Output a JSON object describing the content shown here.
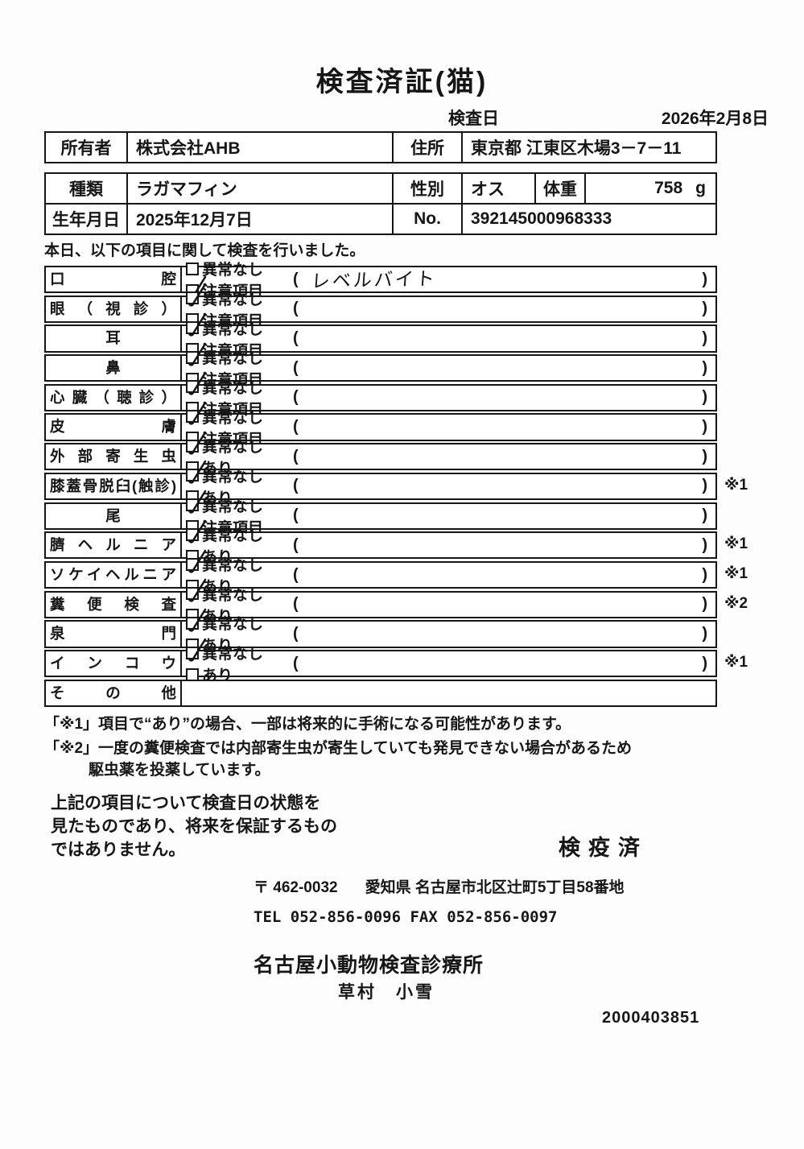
{
  "title": "検査済証(猫)",
  "inspection": {
    "date_label": "検査日",
    "date_value": "2026年2月8日"
  },
  "owner_table": {
    "owner_label": "所有者",
    "owner_value": "株式会社AHB",
    "address_label": "住所",
    "address_value": "東京都 江東区木場3－7－11"
  },
  "info_table": {
    "breed_label": "種類",
    "breed_value": "ラガマフィン",
    "sex_label": "性別",
    "sex_value": "オス",
    "weight_label": "体重",
    "weight_value": "758",
    "weight_unit": "g",
    "birth_label": "生年月日",
    "birth_value": "2025年12月7日",
    "no_label": "No.",
    "no_value": "392145000968333"
  },
  "intro": "本日、以下の項目に関して検査を行いました。",
  "checklist": {
    "paren_open": "(",
    "paren_close": ")",
    "rows": [
      {
        "label": "口腔",
        "options": [
          {
            "text": "異常なし",
            "checked": false
          },
          {
            "text": "注意項目",
            "checked": true
          }
        ],
        "paren": "レベルバイト",
        "marker": ""
      },
      {
        "label": "眼（視診）",
        "options": [
          {
            "text": "異常なし",
            "checked": true
          },
          {
            "text": "注意項目",
            "checked": false
          }
        ],
        "paren": "",
        "marker": ""
      },
      {
        "label": "耳",
        "options": [
          {
            "text": "異常なし",
            "checked": true
          },
          {
            "text": "注意項目",
            "checked": false
          }
        ],
        "paren": "",
        "marker": ""
      },
      {
        "label": "鼻",
        "options": [
          {
            "text": "異常なし",
            "checked": true
          },
          {
            "text": "注意項目",
            "checked": false
          }
        ],
        "paren": "",
        "marker": ""
      },
      {
        "label": "心臓（聴診）",
        "options": [
          {
            "text": "異常なし",
            "checked": true
          },
          {
            "text": "注意項目",
            "checked": false
          }
        ],
        "paren": "",
        "marker": ""
      },
      {
        "label": "皮膚",
        "options": [
          {
            "text": "異常なし",
            "checked": true
          },
          {
            "text": "注意項目",
            "checked": false
          }
        ],
        "paren": "",
        "marker": ""
      },
      {
        "label": "外部寄生虫",
        "options": [
          {
            "text": "異常なし",
            "checked": true
          },
          {
            "text": "あり",
            "checked": false
          }
        ],
        "paren": "",
        "marker": ""
      },
      {
        "label": "膝蓋骨脱臼(触診)",
        "options": [
          {
            "text": "異常なし",
            "checked": true
          },
          {
            "text": "あり",
            "checked": false
          }
        ],
        "paren": "",
        "marker": "※1"
      },
      {
        "label": "尾",
        "options": [
          {
            "text": "異常なし",
            "checked": true
          },
          {
            "text": "注意項目",
            "checked": false
          }
        ],
        "paren": "",
        "marker": ""
      },
      {
        "label": "臍ヘルニア",
        "options": [
          {
            "text": "異常なし",
            "checked": true
          },
          {
            "text": "あり",
            "checked": false
          }
        ],
        "paren": "",
        "marker": "※1"
      },
      {
        "label": "ソケイヘルニア",
        "options": [
          {
            "text": "異常なし",
            "checked": true
          },
          {
            "text": "あり",
            "checked": false
          }
        ],
        "paren": "",
        "marker": "※1"
      },
      {
        "label": "糞便検査",
        "options": [
          {
            "text": "異常なし",
            "checked": true
          },
          {
            "text": "あり",
            "checked": false
          }
        ],
        "paren": "",
        "marker": "※2"
      },
      {
        "label": "泉門",
        "options": [
          {
            "text": "異常なし",
            "checked": true
          },
          {
            "text": "あり",
            "checked": false
          }
        ],
        "paren": "",
        "marker": ""
      },
      {
        "label": "インコウ",
        "options": [
          {
            "text": "異常なし",
            "checked": true
          },
          {
            "text": "あり",
            "checked": false
          }
        ],
        "paren": "",
        "marker": "※1"
      },
      {
        "label": "その他",
        "options": [],
        "paren": "",
        "marker": ""
      }
    ]
  },
  "notes": {
    "note1": "「※1」項目で“あり”の場合、一部は将来的に手術になる可能性があります。",
    "note2_line1": "「※2」一度の糞便検査では内部寄生虫が寄生していても発見できない場合があるため",
    "note2_line2": "駆虫薬を投薬しています。"
  },
  "footer": {
    "disclaimer_line1": "上記の項目について検査日の状態を",
    "disclaimer_line2": "見たものであり、将来を保証するもの",
    "disclaimer_line3": "ではありません。",
    "stamp": "検疫済",
    "postal": "〒 462-0032",
    "address": "愛知県 名古屋市北区辻町5丁目58番地",
    "tel_fax": "TEL 052-856-0096  FAX 052-856-0097",
    "clinic_name": "名古屋小動物検査診療所",
    "veterinarian": "草村　小雪",
    "document_number": "2000403851"
  }
}
